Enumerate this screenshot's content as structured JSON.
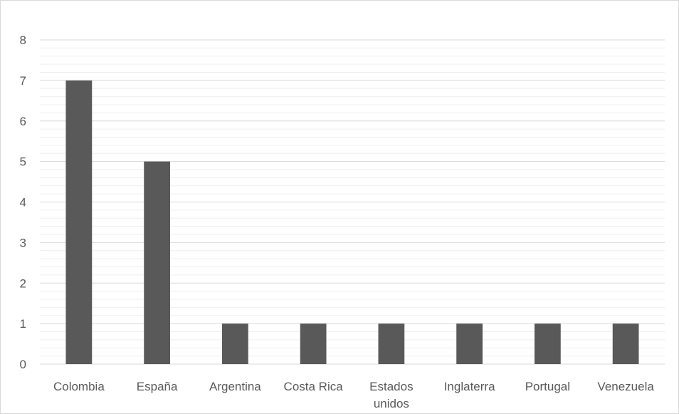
{
  "chart_data": {
    "type": "bar",
    "categories": [
      "Colombia",
      "España",
      "Argentina",
      "Costa Rica",
      "Estados unidos",
      "Inglaterra",
      "Portugal",
      "Venezuela"
    ],
    "category_label_lines": [
      [
        "Colombia"
      ],
      [
        "España"
      ],
      [
        "Argentina"
      ],
      [
        "Costa Rica"
      ],
      [
        "Estados",
        "unidos"
      ],
      [
        "Inglaterra"
      ],
      [
        "Portugal"
      ],
      [
        "Venezuela"
      ]
    ],
    "values": [
      7,
      5,
      1,
      1,
      1,
      1,
      1,
      1
    ],
    "yticks": [
      0,
      1,
      2,
      3,
      4,
      5,
      6,
      7,
      8
    ],
    "ylim": [
      0,
      8
    ],
    "minor_gridlines_per_unit": 5,
    "grid": true,
    "bar_color": "#595959",
    "major_grid_color": "#d9d9d9",
    "minor_grid_color": "#efefef",
    "title": "",
    "xlabel": "",
    "ylabel": ""
  }
}
